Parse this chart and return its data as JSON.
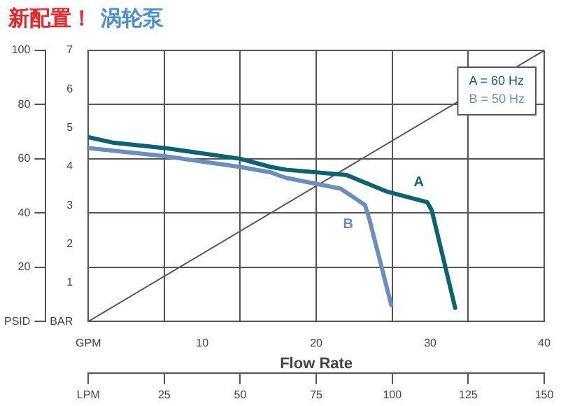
{
  "chart_data": {
    "type": "line",
    "title": "新配置！",
    "subtitle": "涡轮泵",
    "xlabel": "Flow Rate",
    "xlim": [
      0,
      150
    ],
    "xticks": [
      {
        "value": 0,
        "label": "LPM"
      },
      25,
      50,
      75,
      100,
      125,
      150
    ],
    "x2lim": [
      0,
      40
    ],
    "x2ticks": [
      {
        "value": 0,
        "label": "GPM"
      },
      10,
      20,
      30,
      40
    ],
    "ylim": [
      0,
      100
    ],
    "yticks": [
      {
        "value": 0,
        "label": "PSID"
      },
      20,
      40,
      60,
      80,
      100
    ],
    "y2lim": [
      0,
      7
    ],
    "y2ticks": [
      {
        "value": 0,
        "label": "BAR"
      },
      1,
      2,
      3,
      4,
      5,
      6,
      7
    ],
    "grid": true,
    "legend": false,
    "marker": "none",
    "line_style": "solid",
    "annotations": [
      "A = 60 Hz",
      "B = 50 Hz"
    ],
    "series": [
      {
        "name": "A",
        "color": "#0b6271",
        "x": [
          0,
          8,
          25,
          50,
          60,
          65,
          85,
          98,
          111.5,
          113,
          120.7
        ],
        "values": [
          68,
          66,
          64,
          60,
          57,
          56,
          54,
          48,
          44,
          41,
          5
        ]
      },
      {
        "name": "B",
        "color": "#6a8fbf",
        "x": [
          0,
          25,
          50,
          60,
          65,
          83,
          91,
          92.4,
          99.7
        ],
        "values": [
          64,
          61,
          57,
          55,
          53,
          49,
          43,
          38,
          6
        ]
      },
      {
        "color": "#555555",
        "x": [
          0,
          150
        ],
        "values": [
          0,
          100
        ]
      }
    ]
  }
}
